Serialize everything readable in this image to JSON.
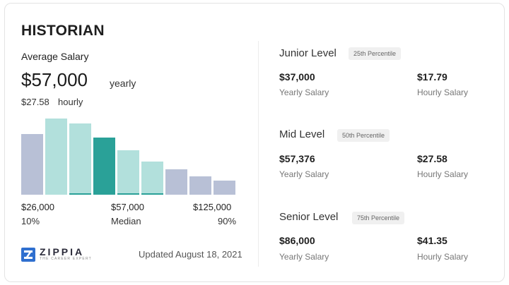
{
  "job_title": "HISTORIAN",
  "average_label": "Average Salary",
  "salary": "$57,000",
  "salary_unit": "yearly",
  "hourly": "$27.58",
  "hourly_unit": "hourly",
  "chart_data": {
    "type": "bar",
    "values": [
      78,
      98,
      92,
      74,
      57,
      43,
      33,
      24,
      18
    ],
    "colors": [
      "#b8c0d6",
      "#b2e0dc",
      "#b2e0dc",
      "#2aa198",
      "#b2e0dc",
      "#b2e0dc",
      "#b8c0d6",
      "#b8c0d6",
      "#b8c0d6"
    ],
    "axis_labels": {
      "min": "$26,000",
      "mid": "$57,000",
      "max": "$125,000",
      "min_sub": "10%",
      "mid_sub": "Median",
      "max_sub": "90%"
    }
  },
  "brand": {
    "name": "ZIPPIA",
    "tagline": "THE CAREER EXPERT"
  },
  "updated": "Updated August 18, 2021",
  "levels": [
    {
      "name": "Junior Level",
      "percentile": "25th Percentile",
      "yearly": "$37,000",
      "yearly_label": "Yearly Salary",
      "hourly": "$17.79",
      "hourly_label": "Hourly Salary"
    },
    {
      "name": "Mid Level",
      "percentile": "50th Percentile",
      "yearly": "$57,376",
      "yearly_label": "Yearly Salary",
      "hourly": "$27.58",
      "hourly_label": "Hourly Salary"
    },
    {
      "name": "Senior Level",
      "percentile": "75th Percentile",
      "yearly": "$86,000",
      "yearly_label": "Yearly Salary",
      "hourly": "$41.35",
      "hourly_label": "Hourly Salary"
    }
  ]
}
